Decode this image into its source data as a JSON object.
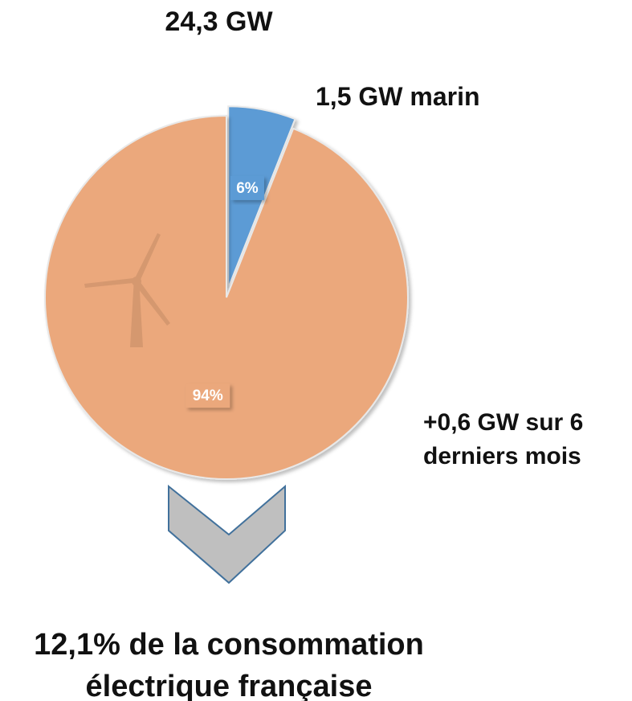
{
  "chart_data": {
    "type": "pie",
    "title": "24,3 GW",
    "values": [
      6,
      94
    ],
    "value_labels": [
      "6%",
      "94%"
    ],
    "colors": [
      "#5b9bd5",
      "#eba87b"
    ],
    "explode": [
      true,
      false
    ],
    "annotations": [
      "1,5 GW marin",
      "+0,6 GW sur 6 derniers mois"
    ],
    "footer": "12,1% de la consommation électrique française"
  }
}
